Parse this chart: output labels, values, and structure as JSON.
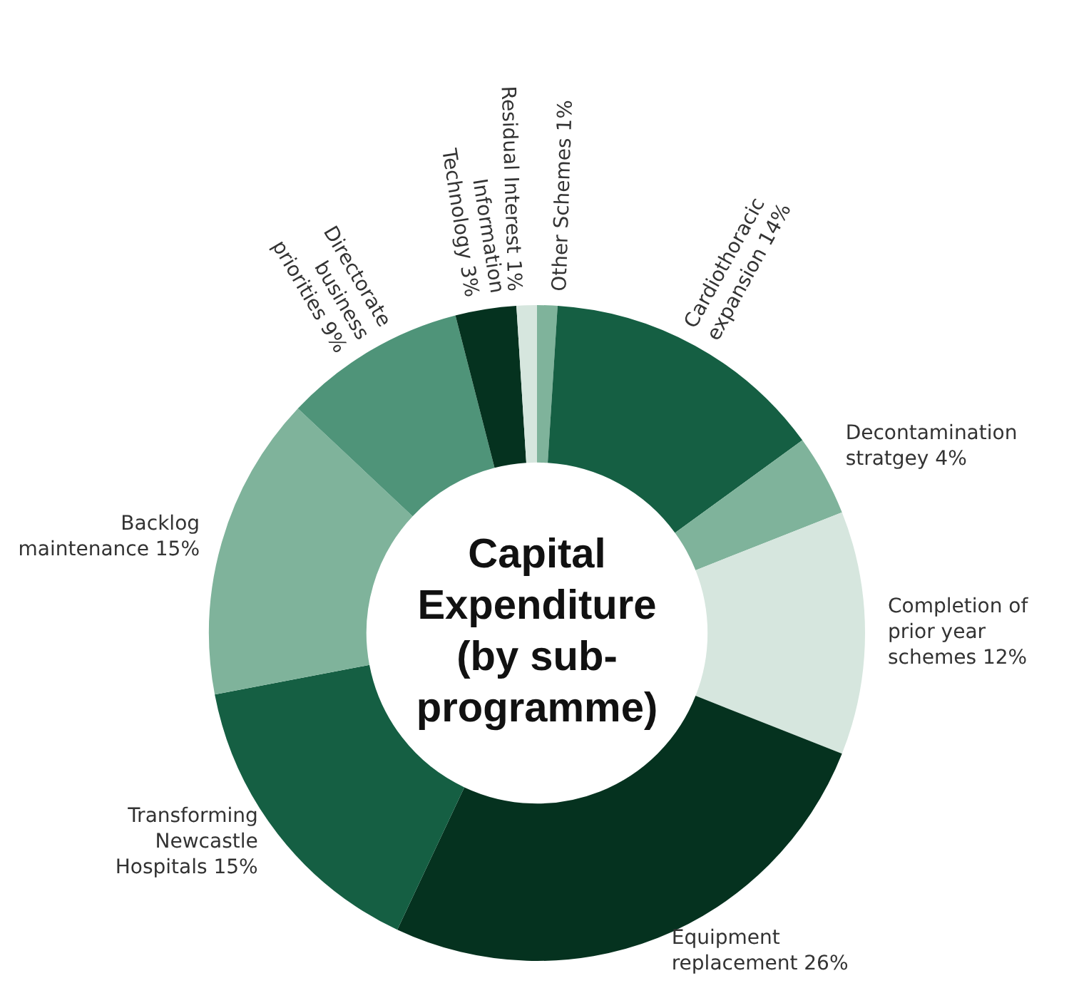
{
  "chart_data": {
    "type": "donut",
    "title": "Capital Expenditure (by sub-programme)",
    "categories": [
      "Other Schemes",
      "Cardiothoracic expansion",
      "Decontamination stratgey",
      "Completion of prior year schemes",
      "Equipment replacement",
      "Transforming Newcastle Hospitals",
      "Backlog maintenance",
      "Directorate business priorities",
      "Information Technology",
      "Residual Interest"
    ],
    "values": [
      1,
      14,
      4,
      12,
      26,
      15,
      15,
      9,
      3,
      1
    ],
    "value_labels": [
      "1%",
      "14%",
      "4%",
      "12%",
      "26%",
      "15%",
      "15%",
      "9%",
      "3%",
      "1%"
    ],
    "colors": [
      "#7fb39b",
      "#155f43",
      "#7fb39b",
      "#d6e6de",
      "#05321f",
      "#155f43",
      "#7fb39b",
      "#4f9479",
      "#05321f",
      "#d6e6de"
    ]
  }
}
